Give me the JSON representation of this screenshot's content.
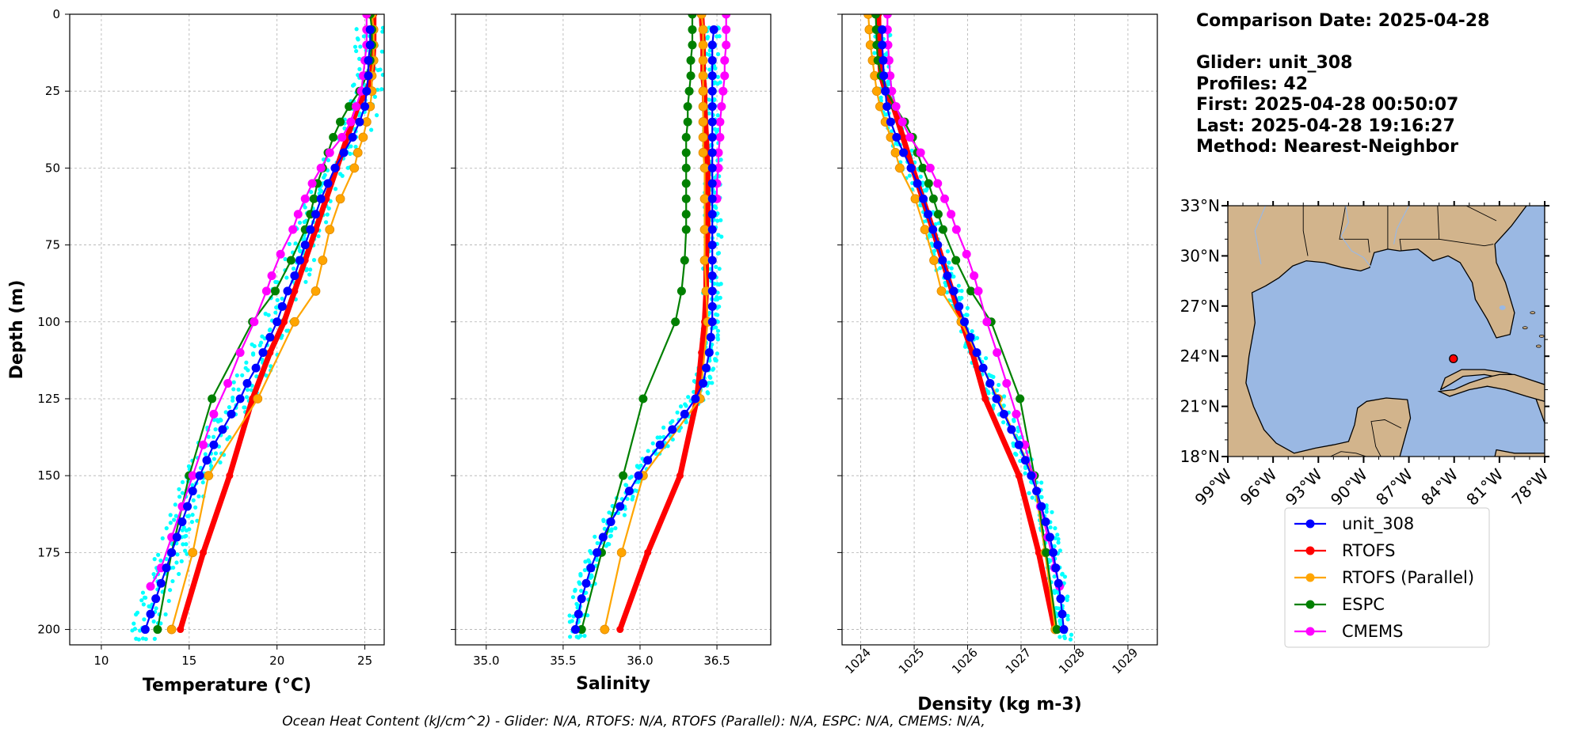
{
  "info": {
    "comparison_date": "Comparison Date: 2025-04-28",
    "glider": "Glider: unit_308",
    "profiles": "Profiles: 42",
    "first": "First: 2025-04-28 00:50:07",
    "last": "Last: 2025-04-28 19:16:27",
    "method": "Method: Nearest-Neighbor"
  },
  "footer": "Ocean Heat Content (kJ/cm^2) - Glider: N/A,  RTOFS: N/A,  RTOFS (Parallel): N/A,  ESPC: N/A,  CMEMS: N/A,",
  "colors": {
    "unit_308": "#0000ff",
    "RTOFS": "#ff0000",
    "RTOFS (Parallel)": "#ffa500",
    "ESPC": "#008000",
    "CMEMS": "#ff00ff",
    "glider_points": "#00ffff",
    "ocean": "#9ab8e3",
    "land": "#d2b48c"
  },
  "chart_data": [
    {
      "type": "line",
      "panel": "temperature",
      "xlabel": "Temperature (°C)",
      "ylabel": "Depth (m)",
      "xlim": [
        8.2,
        26.1
      ],
      "ylim": [
        205,
        0
      ],
      "y_inverted": true,
      "xticks": [
        10,
        15,
        20,
        25
      ],
      "yticks": [
        0,
        25,
        50,
        75,
        100,
        125,
        150,
        175,
        200
      ],
      "grid": true,
      "scatter_spread": 0.9,
      "series": [
        {
          "name": "unit_308",
          "depth": [
            5,
            10,
            15,
            20,
            25,
            30,
            35,
            40,
            45,
            50,
            55,
            60,
            65,
            70,
            75,
            80,
            85,
            90,
            95,
            100,
            105,
            110,
            115,
            120,
            125,
            130,
            135,
            140,
            145,
            150,
            155,
            160,
            165,
            170,
            175,
            180,
            185,
            190,
            195,
            200
          ],
          "values": [
            25.3,
            25.3,
            25.2,
            25.2,
            25.1,
            25.0,
            24.7,
            24.3,
            23.8,
            23.3,
            22.9,
            22.5,
            22.2,
            21.9,
            21.6,
            21.3,
            21.0,
            20.6,
            20.3,
            20.0,
            19.6,
            19.2,
            18.8,
            18.3,
            17.9,
            17.4,
            16.9,
            16.4,
            16.0,
            15.6,
            15.2,
            14.9,
            14.6,
            14.3,
            14.0,
            13.7,
            13.4,
            13.1,
            12.8,
            12.5
          ]
        },
        {
          "name": "RTOFS",
          "depth": [
            0,
            10,
            20,
            25,
            30,
            40,
            50,
            60,
            70,
            80,
            90,
            100,
            110,
            125,
            150,
            175,
            200
          ],
          "values": [
            25.5,
            25.5,
            25.4,
            25.1,
            24.6,
            24.0,
            23.4,
            22.8,
            22.2,
            21.6,
            21.0,
            20.4,
            19.6,
            18.6,
            17.3,
            15.8,
            14.5
          ]
        },
        {
          "name": "RTOFS (Parallel)",
          "depth": [
            0,
            5,
            10,
            15,
            20,
            25,
            30,
            35,
            40,
            45,
            50,
            60,
            70,
            80,
            90,
            100,
            125,
            150,
            175,
            200
          ],
          "values": [
            25.4,
            25.5,
            25.5,
            25.5,
            25.4,
            25.4,
            25.3,
            25.1,
            24.9,
            24.6,
            24.4,
            23.6,
            23.0,
            22.6,
            22.2,
            21.0,
            18.9,
            16.1,
            15.2,
            14.0
          ]
        },
        {
          "name": "ESPC",
          "depth": [
            0,
            5,
            10,
            15,
            20,
            25,
            30,
            35,
            40,
            45,
            50,
            55,
            60,
            65,
            70,
            80,
            90,
            100,
            125,
            150,
            175,
            200
          ],
          "values": [
            25.3,
            25.4,
            25.4,
            25.3,
            25.1,
            24.7,
            24.1,
            23.6,
            23.2,
            22.9,
            22.6,
            22.3,
            22.1,
            21.9,
            21.6,
            20.8,
            19.9,
            18.6,
            16.3,
            15.0,
            14.0,
            13.2
          ]
        },
        {
          "name": "CMEMS",
          "depth": [
            0,
            5,
            10,
            15,
            20,
            25,
            30,
            35,
            40,
            45,
            50,
            55,
            60,
            65,
            70,
            78,
            85,
            90,
            100,
            110,
            120,
            130,
            140,
            150,
            160,
            170,
            180,
            186
          ],
          "values": [
            25.1,
            25.1,
            25.1,
            25.0,
            24.9,
            24.8,
            24.5,
            24.2,
            23.7,
            23.0,
            22.5,
            22.0,
            21.6,
            21.2,
            20.9,
            20.2,
            19.7,
            19.4,
            18.7,
            17.9,
            17.2,
            16.4,
            15.8,
            15.2,
            14.6,
            14.0,
            13.4,
            12.8
          ]
        }
      ]
    },
    {
      "type": "line",
      "panel": "salinity",
      "xlabel": "Salinity",
      "xlim": [
        34.8,
        36.85
      ],
      "ylim": [
        205,
        0
      ],
      "y_inverted": true,
      "xticks": [
        "35.0",
        "35.5",
        "36.0",
        "36.5"
      ],
      "yticks": [
        0,
        25,
        50,
        75,
        100,
        125,
        150,
        175,
        200
      ],
      "grid": true,
      "scatter_spread": 0.06,
      "series": [
        {
          "name": "unit_308",
          "depth": [
            5,
            10,
            15,
            20,
            25,
            30,
            35,
            40,
            45,
            50,
            55,
            60,
            65,
            70,
            75,
            80,
            85,
            90,
            95,
            100,
            105,
            110,
            115,
            120,
            125,
            130,
            135,
            140,
            145,
            150,
            155,
            160,
            165,
            170,
            175,
            180,
            185,
            190,
            195,
            200
          ],
          "values": [
            36.48,
            36.47,
            36.47,
            36.47,
            36.47,
            36.47,
            36.47,
            36.47,
            36.47,
            36.47,
            36.47,
            36.47,
            36.47,
            36.47,
            36.47,
            36.47,
            36.47,
            36.47,
            36.47,
            36.47,
            36.46,
            36.45,
            36.43,
            36.41,
            36.36,
            36.29,
            36.21,
            36.13,
            36.05,
            35.99,
            35.93,
            35.87,
            35.81,
            35.76,
            35.72,
            35.68,
            35.65,
            35.62,
            35.6,
            35.58
          ]
        },
        {
          "name": "RTOFS",
          "depth": [
            0,
            10,
            20,
            25,
            30,
            40,
            50,
            60,
            70,
            80,
            90,
            100,
            110,
            125,
            150,
            175,
            200
          ],
          "values": [
            36.4,
            36.41,
            36.41,
            36.42,
            36.42,
            36.43,
            36.44,
            36.44,
            36.44,
            36.43,
            36.43,
            36.42,
            36.4,
            36.37,
            36.26,
            36.05,
            35.87
          ]
        },
        {
          "name": "RTOFS (Parallel)",
          "depth": [
            0,
            5,
            10,
            15,
            20,
            25,
            30,
            35,
            40,
            45,
            50,
            60,
            70,
            80,
            90,
            100,
            125,
            150,
            175,
            200
          ],
          "values": [
            36.4,
            36.41,
            36.41,
            36.41,
            36.41,
            36.41,
            36.41,
            36.41,
            36.41,
            36.41,
            36.42,
            36.42,
            36.42,
            36.42,
            36.43,
            36.44,
            36.39,
            36.02,
            35.88,
            35.77
          ]
        },
        {
          "name": "ESPC",
          "depth": [
            0,
            5,
            10,
            15,
            20,
            25,
            30,
            35,
            40,
            45,
            50,
            55,
            60,
            65,
            70,
            80,
            90,
            100,
            125,
            150,
            175,
            200
          ],
          "values": [
            36.34,
            36.34,
            36.34,
            36.33,
            36.33,
            36.32,
            36.31,
            36.31,
            36.3,
            36.3,
            36.3,
            36.3,
            36.3,
            36.3,
            36.3,
            36.29,
            36.27,
            36.23,
            36.02,
            35.89,
            35.75,
            35.62
          ]
        },
        {
          "name": "CMEMS",
          "depth": [
            0,
            5,
            10,
            15,
            20,
            25,
            30,
            35,
            40,
            45,
            50,
            55,
            60
          ],
          "values": [
            36.56,
            36.56,
            36.56,
            36.55,
            36.55,
            36.54,
            36.53,
            36.52,
            36.52,
            36.51,
            36.51,
            36.5,
            36.5
          ]
        }
      ]
    },
    {
      "type": "line",
      "panel": "density",
      "xlabel": "Density (kg m-3)",
      "xlim": [
        1023.65,
        1029.55
      ],
      "ylim": [
        205,
        0
      ],
      "y_inverted": true,
      "xticks": [
        1024,
        1025,
        1026,
        1027,
        1028,
        1029
      ],
      "yticks": [
        0,
        25,
        50,
        75,
        100,
        125,
        150,
        175,
        200
      ],
      "grid": true,
      "scatter_spread": 0.16,
      "series": [
        {
          "name": "unit_308",
          "depth": [
            5,
            10,
            15,
            20,
            25,
            30,
            35,
            40,
            45,
            50,
            55,
            60,
            65,
            70,
            75,
            80,
            85,
            90,
            95,
            100,
            105,
            110,
            115,
            120,
            125,
            130,
            135,
            140,
            145,
            150,
            155,
            160,
            165,
            170,
            175,
            180,
            185,
            190,
            195,
            200
          ],
          "values": [
            1024.4,
            1024.4,
            1024.42,
            1024.43,
            1024.46,
            1024.49,
            1024.56,
            1024.67,
            1024.8,
            1024.94,
            1025.06,
            1025.17,
            1025.26,
            1025.35,
            1025.44,
            1025.53,
            1025.62,
            1025.74,
            1025.84,
            1025.94,
            1026.05,
            1026.17,
            1026.29,
            1026.42,
            1026.54,
            1026.68,
            1026.82,
            1026.96,
            1027.08,
            1027.19,
            1027.29,
            1027.38,
            1027.46,
            1027.54,
            1027.6,
            1027.65,
            1027.7,
            1027.74,
            1027.77,
            1027.8
          ]
        },
        {
          "name": "RTOFS",
          "depth": [
            0,
            10,
            20,
            25,
            30,
            40,
            50,
            60,
            70,
            80,
            90,
            100,
            110,
            125,
            150,
            175,
            200
          ],
          "values": [
            1024.33,
            1024.34,
            1024.38,
            1024.46,
            1024.61,
            1024.79,
            1024.97,
            1025.16,
            1025.35,
            1025.53,
            1025.71,
            1025.89,
            1026.09,
            1026.33,
            1026.96,
            1027.33,
            1027.63
          ]
        },
        {
          "name": "RTOFS (Parallel)",
          "depth": [
            0,
            5,
            10,
            15,
            20,
            25,
            30,
            35,
            40,
            45,
            50,
            60,
            70,
            80,
            90,
            100,
            125,
            150,
            175,
            200
          ],
          "values": [
            1024.14,
            1024.16,
            1024.18,
            1024.22,
            1024.26,
            1024.3,
            1024.36,
            1024.46,
            1024.56,
            1024.65,
            1024.73,
            1025.02,
            1025.2,
            1025.37,
            1025.51,
            1025.88,
            1026.57,
            1027.23,
            1027.45,
            1027.64
          ]
        },
        {
          "name": "ESPC",
          "depth": [
            0,
            5,
            10,
            15,
            20,
            25,
            30,
            35,
            40,
            45,
            50,
            55,
            60,
            65,
            70,
            80,
            90,
            100,
            125,
            150,
            175,
            200
          ],
          "values": [
            1024.28,
            1024.29,
            1024.3,
            1024.32,
            1024.38,
            1024.48,
            1024.64,
            1024.82,
            1024.97,
            1025.06,
            1025.16,
            1025.27,
            1025.36,
            1025.45,
            1025.54,
            1025.78,
            1026.06,
            1026.44,
            1026.98,
            1027.25,
            1027.47,
            1027.67
          ]
        },
        {
          "name": "CMEMS",
          "depth": [
            0,
            5,
            10,
            15,
            20,
            25,
            30,
            35,
            40,
            45,
            50,
            55,
            60,
            65,
            70,
            78,
            85,
            90,
            100,
            110,
            120,
            130,
            140,
            150,
            160,
            170,
            180,
            186
          ],
          "values": [
            1024.5,
            1024.5,
            1024.51,
            1024.53,
            1024.55,
            1024.58,
            1024.66,
            1024.78,
            1024.92,
            1025.12,
            1025.3,
            1025.44,
            1025.57,
            1025.69,
            1025.79,
            1025.98,
            1026.12,
            1026.2,
            1026.36,
            1026.55,
            1026.73,
            1026.91,
            1027.07,
            1027.22,
            1027.36,
            1027.5,
            1027.63,
            1027.72
          ]
        }
      ]
    },
    {
      "type": "map",
      "panel": "location",
      "lon_range": [
        -99,
        -78
      ],
      "lat_range": [
        18,
        33
      ],
      "lon_ticks": [
        "99°W",
        "96°W",
        "93°W",
        "90°W",
        "87°W",
        "84°W",
        "81°W",
        "78°W"
      ],
      "lat_ticks": [
        "33°N",
        "30°N",
        "27°N",
        "24°N",
        "21°N",
        "18°N"
      ],
      "glider_position": {
        "lon": -84.05,
        "lat": 23.85
      }
    }
  ],
  "legend": {
    "placement": "below map",
    "entries": [
      "unit_308",
      "RTOFS",
      "RTOFS (Parallel)",
      "ESPC",
      "CMEMS"
    ]
  }
}
